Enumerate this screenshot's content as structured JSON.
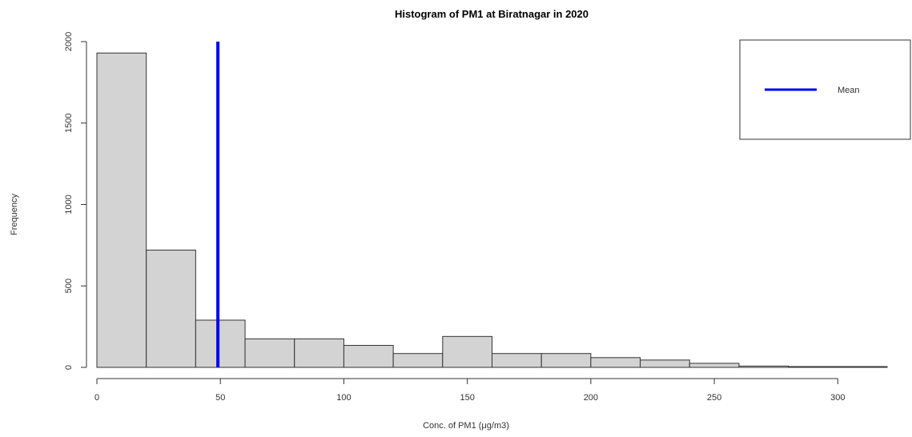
{
  "chart_data": {
    "type": "bar",
    "title": "Histogram of PM1 at Biratnagar in 2020",
    "xlabel": "Conc. of PM1 (μg/m3)",
    "ylabel": "Frequency",
    "bins": [
      {
        "from": 0,
        "to": 20,
        "count": 1930
      },
      {
        "from": 20,
        "to": 40,
        "count": 720
      },
      {
        "from": 40,
        "to": 60,
        "count": 290
      },
      {
        "from": 60,
        "to": 80,
        "count": 175
      },
      {
        "from": 80,
        "to": 100,
        "count": 175
      },
      {
        "from": 100,
        "to": 120,
        "count": 135
      },
      {
        "from": 120,
        "to": 140,
        "count": 85
      },
      {
        "from": 140,
        "to": 160,
        "count": 190
      },
      {
        "from": 160,
        "to": 180,
        "count": 85
      },
      {
        "from": 180,
        "to": 200,
        "count": 85
      },
      {
        "from": 200,
        "to": 220,
        "count": 60
      },
      {
        "from": 220,
        "to": 240,
        "count": 45
      },
      {
        "from": 240,
        "to": 260,
        "count": 25
      },
      {
        "from": 260,
        "to": 280,
        "count": 8
      },
      {
        "from": 280,
        "to": 300,
        "count": 5
      },
      {
        "from": 300,
        "to": 320,
        "count": 5
      }
    ],
    "xlim": [
      0,
      320
    ],
    "ylim": [
      0,
      2000
    ],
    "x_ticks": [
      "0",
      "50",
      "100",
      "150",
      "200",
      "250",
      "300"
    ],
    "y_ticks": [
      "0",
      "500",
      "1000",
      "1500",
      "2000"
    ],
    "mean_line": {
      "x": 49,
      "label": "Mean",
      "color": "#0000ee"
    },
    "bar_fill": "#d3d3d3",
    "bar_stroke": "#333333",
    "legend_placement": "top-right",
    "grid": false
  }
}
